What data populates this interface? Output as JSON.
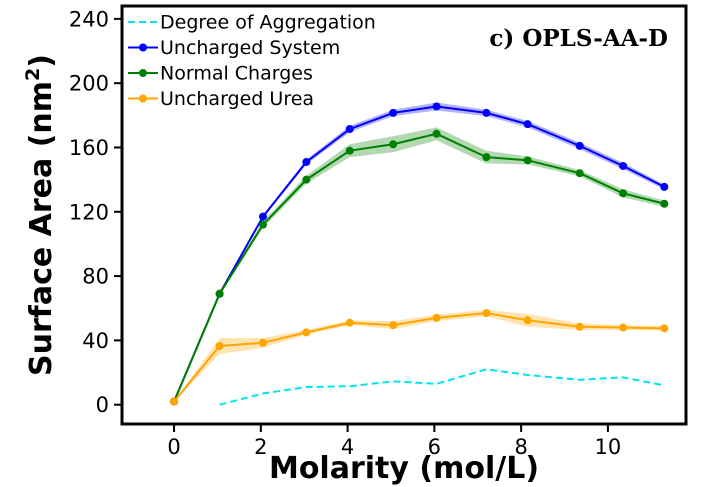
{
  "chart_data": {
    "type": "line",
    "title": "",
    "annotation": "c) OPLS-AA-D",
    "xlabel": "Molarity (mol/L)",
    "ylabel": "Surface Area (nm",
    "ylabel_sup": "2",
    "ylabel_close": ")",
    "xlim": [
      -1.2,
      11.8
    ],
    "ylim": [
      -12,
      248
    ],
    "xticks": [
      0,
      2,
      4,
      6,
      8,
      10
    ],
    "yticks": [
      0,
      40,
      80,
      120,
      160,
      200,
      240
    ],
    "grid": false,
    "legend_position": "top-left",
    "series": [
      {
        "name": "Degree of Aggregation",
        "style": "dashed",
        "color": "#00e5ee",
        "markers": false,
        "x": [
          1.05,
          2.05,
          3.05,
          4.05,
          5.05,
          6.05,
          7.2,
          8.15,
          9.35,
          10.35,
          11.3
        ],
        "y": [
          0,
          7,
          11,
          11.5,
          14.5,
          13,
          22,
          18.5,
          15.5,
          17,
          12
        ]
      },
      {
        "name": "Uncharged System",
        "style": "solid",
        "color": "#0000ff",
        "markers": true,
        "x": [
          0,
          1.05,
          2.05,
          3.05,
          4.05,
          5.05,
          6.05,
          7.2,
          8.15,
          9.35,
          10.35,
          11.3
        ],
        "y": [
          2,
          69,
          117,
          151,
          171.5,
          181.5,
          185.5,
          181.5,
          174.5,
          161,
          148.5,
          135.5
        ],
        "band": [
          0,
          1,
          1,
          1.5,
          2,
          2,
          2.5,
          2,
          2,
          2,
          2,
          1.5
        ]
      },
      {
        "name": "Normal Charges",
        "style": "solid",
        "color": "#008000",
        "markers": true,
        "x": [
          0,
          1.05,
          2.05,
          3.05,
          4.05,
          5.05,
          6.05,
          7.2,
          8.15,
          9.35,
          10.35,
          11.3
        ],
        "y": [
          2,
          69,
          112,
          140,
          158,
          162,
          168.5,
          154,
          152,
          144,
          131.5,
          125
        ],
        "band": [
          0,
          1,
          2,
          2.5,
          4,
          5,
          4,
          4,
          2.5,
          2,
          2.5,
          2
        ]
      },
      {
        "name": "Uncharged Urea",
        "style": "solid",
        "color": "#ffa500",
        "markers": true,
        "x": [
          0,
          1.05,
          2.05,
          3.05,
          4.05,
          5.05,
          6.05,
          7.2,
          8.15,
          9.35,
          10.35,
          11.3
        ],
        "y": [
          2,
          36.5,
          38.5,
          45,
          51,
          49.5,
          54,
          57,
          52.5,
          48.5,
          48,
          47.5
        ],
        "band": [
          0,
          5,
          3,
          1.5,
          1.5,
          2.5,
          2,
          2,
          4,
          2,
          1.5,
          1.5
        ]
      }
    ]
  }
}
